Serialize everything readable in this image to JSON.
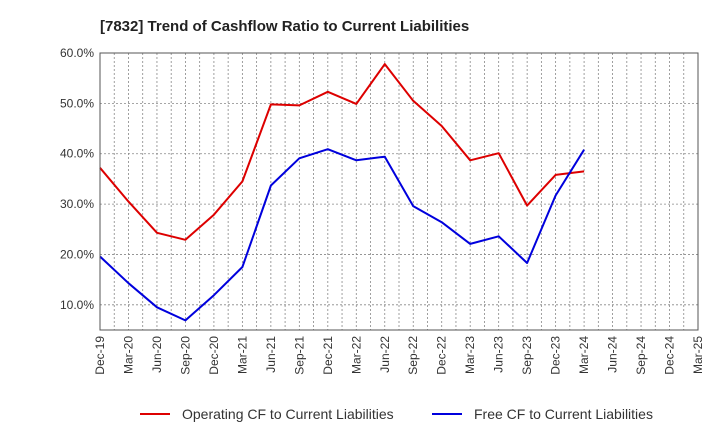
{
  "chart_data": {
    "type": "line",
    "title": "[7832]  Trend of Cashflow Ratio to Current Liabilities",
    "xlabel": "",
    "ylabel": "",
    "categories": [
      "Dec-19",
      "Mar-20",
      "Jun-20",
      "Sep-20",
      "Dec-20",
      "Mar-21",
      "Jun-21",
      "Sep-21",
      "Dec-21",
      "Mar-22",
      "Jun-22",
      "Sep-22",
      "Dec-22",
      "Mar-23",
      "Jun-23",
      "Sep-23",
      "Dec-23",
      "Mar-24",
      "Jun-24",
      "Sep-24",
      "Dec-24",
      "Mar-25"
    ],
    "y_ticks": [
      "10.0%",
      "20.0%",
      "30.0%",
      "40.0%",
      "50.0%",
      "60.0%"
    ],
    "ylim": [
      5,
      60
    ],
    "grid": true,
    "legend_position": "bottom",
    "series": [
      {
        "name": "Operating CF to Current Liabilities",
        "color": "#dd0000",
        "values": [
          37.2,
          30.5,
          24.3,
          22.9,
          27.9,
          34.5,
          49.8,
          49.6,
          52.3,
          49.9,
          57.8,
          50.5,
          45.5,
          38.7,
          40.1,
          29.7,
          35.8,
          36.5,
          null,
          null,
          null,
          null
        ]
      },
      {
        "name": "Free CF to Current Liabilities",
        "color": "#0000dd",
        "values": [
          19.6,
          14.3,
          9.5,
          6.9,
          11.9,
          17.5,
          33.7,
          39.1,
          40.9,
          38.7,
          39.4,
          29.6,
          26.4,
          22.1,
          23.6,
          18.3,
          31.7,
          40.8,
          null,
          null,
          null,
          null
        ]
      }
    ]
  }
}
